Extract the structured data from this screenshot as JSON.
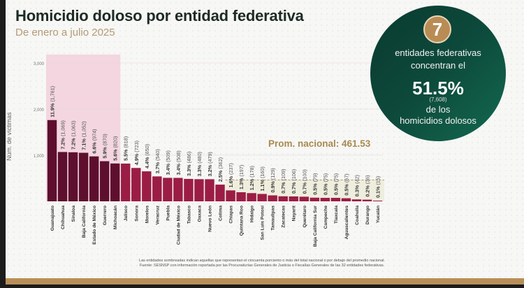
{
  "header": {
    "title": "Homicidio doloso por entidad federativa",
    "subtitle": "De enero a julio 2025"
  },
  "callout": {
    "badge_number": "7",
    "line1": "entidades federativas",
    "line2": "concentran el",
    "percent": "51.5%",
    "count": "(7,608)",
    "line3": "de los",
    "line4": "homicidios dolosos"
  },
  "average_label": "Prom. nacional: 461.53",
  "footnotes": {
    "note": "Las entidades sombreadas indican aquellas que representan el cincuenta porciento o más del total nacional o por debajo del promedio nacional.",
    "source": "Fuente: SESNSP con información reportada por las Procuradurías Generales de Justicia o Fiscalías Generales de las 32 entidades federativas."
  },
  "colors": {
    "top_bars": "#5e0f2e",
    "other_bars": "#9b1d45",
    "low_bars": "#9b1d45",
    "top_shade": "#f3d6e0",
    "low_shade": "#efeede",
    "circle_green": "#0d4a3b",
    "gold": "#b88f59"
  },
  "chart_data": {
    "type": "bar",
    "title": "Homicidio doloso por entidad federativa",
    "subtitle": "De enero a julio 2025",
    "xlabel": "",
    "ylabel": "Núm. de víctimas",
    "ylim": [
      0,
      3000
    ],
    "yticks": [
      1000,
      2000,
      3000
    ],
    "ytick_labels": [
      "1,000",
      "2,000",
      "3,000"
    ],
    "average": 461.53,
    "average_label": "Prom. nacional: 461.53",
    "top_group_count": 7,
    "low_group_start_index": 20,
    "categories": [
      "Guanajuato",
      "Chihuahua",
      "Sinaloa",
      "Baja California",
      "Estado de México",
      "Guerrero",
      "Michoacán",
      "Jalisco",
      "Sonora",
      "Morelos",
      "Veracruz",
      "Puebla",
      "Ciudad de México",
      "Tabasco",
      "Oaxaca",
      "Nuevo León",
      "Colima",
      "Chiapas",
      "Quintana Roo",
      "Hidalgo",
      "San Luis Potosí",
      "Tamaulipas",
      "Zacatecas",
      "Nayarit",
      "Querétaro",
      "Baja California Sur",
      "Campeche",
      "Tlaxcala",
      "Aguascalientes",
      "Coahuila",
      "Durango",
      "Yucatán"
    ],
    "values": [
      1761,
      1069,
      1063,
      1052,
      974,
      870,
      820,
      818,
      723,
      650,
      540,
      509,
      508,
      486,
      480,
      479,
      362,
      237,
      197,
      178,
      160,
      129,
      109,
      106,
      100,
      79,
      75,
      75,
      67,
      42,
      36,
      15
    ],
    "percents": [
      "11.9%",
      "7.2%",
      "7.2%",
      "7.1%",
      "6.6%",
      "5.9%",
      "5.6%",
      "5.5%",
      "4.9%",
      "4.4%",
      "3.7%",
      "3.4%",
      "3.4%",
      "3.3%",
      "3.3%",
      "3.2%",
      "2.5%",
      "1.6%",
      "1.3%",
      "1.2%",
      "1.1%",
      "0.9%",
      "0.7%",
      "0.7%",
      "0.7%",
      "0.5%",
      "0.5%",
      "0.5%",
      "0.5%",
      "0.3%",
      "0.2%",
      "0.1%"
    ],
    "value_labels": [
      "(1,761)",
      "(1,069)",
      "(1,063)",
      "(1,052)",
      "(974)",
      "(870)",
      "(820)",
      "(818)",
      "(723)",
      "(650)",
      "(540)",
      "(509)",
      "(508)",
      "(486)",
      "(480)",
      "(479)",
      "(362)",
      "(237)",
      "(197)",
      "(178)",
      "(160)",
      "(129)",
      "(109)",
      "(106)",
      "(100)",
      "(79)",
      "(75)",
      "(75)",
      "(67)",
      "(42)",
      "(36)",
      "(15)"
    ]
  }
}
